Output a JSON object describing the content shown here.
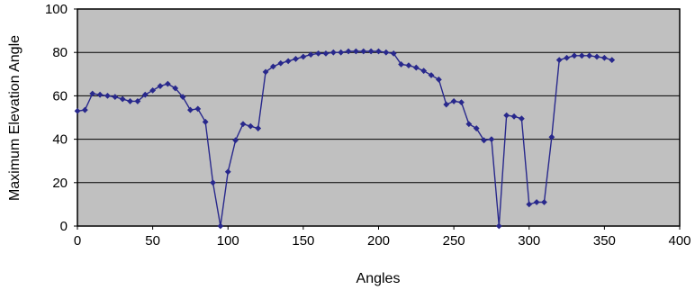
{
  "chart_data": {
    "type": "line",
    "title": "",
    "xlabel": "Angles",
    "ylabel": "Maximum Elevation Angle",
    "xlim": [
      0,
      400
    ],
    "ylim": [
      0,
      100
    ],
    "xticks": [
      0,
      50,
      100,
      150,
      200,
      250,
      300,
      350,
      400
    ],
    "yticks": [
      0,
      20,
      40,
      60,
      80,
      100
    ],
    "grid": "horizontal",
    "legend": "none",
    "colors": {
      "plot_bg": "#c0c0c0",
      "line": "#28288c",
      "gridline": "#000000",
      "axis": "#000000"
    },
    "series": [
      {
        "marker": "diamond",
        "x": [
          0,
          5,
          10,
          15,
          20,
          25,
          30,
          35,
          40,
          45,
          50,
          55,
          60,
          65,
          70,
          75,
          80,
          85,
          90,
          95,
          100,
          105,
          110,
          115,
          120,
          125,
          130,
          135,
          140,
          145,
          150,
          155,
          160,
          165,
          170,
          175,
          180,
          185,
          190,
          195,
          200,
          205,
          210,
          215,
          220,
          225,
          230,
          235,
          240,
          245,
          250,
          255,
          260,
          265,
          270,
          275,
          280,
          285,
          290,
          295,
          300,
          305,
          310,
          315,
          320,
          325,
          330,
          335,
          340,
          345,
          350,
          355
        ],
        "y": [
          53,
          53.5,
          61,
          60.5,
          60,
          59.5,
          58.5,
          57.5,
          57.5,
          60.5,
          62.5,
          64.5,
          65.5,
          63.5,
          59.5,
          53.5,
          54,
          48,
          20,
          0,
          25,
          39.5,
          47,
          46,
          45,
          71,
          73.5,
          75,
          76,
          77,
          78,
          79,
          79.5,
          79.5,
          80,
          80,
          80.5,
          80.5,
          80.5,
          80.5,
          80.5,
          80,
          79.5,
          74.5,
          74,
          73,
          71.5,
          69.5,
          67.5,
          56,
          57.5,
          57,
          47,
          45,
          39.5,
          40,
          0,
          51,
          50.5,
          49.5,
          10,
          11,
          11,
          41,
          76.5,
          77.5,
          78.5,
          78.5,
          78.5,
          78,
          77.5,
          76.5
        ]
      }
    ]
  }
}
